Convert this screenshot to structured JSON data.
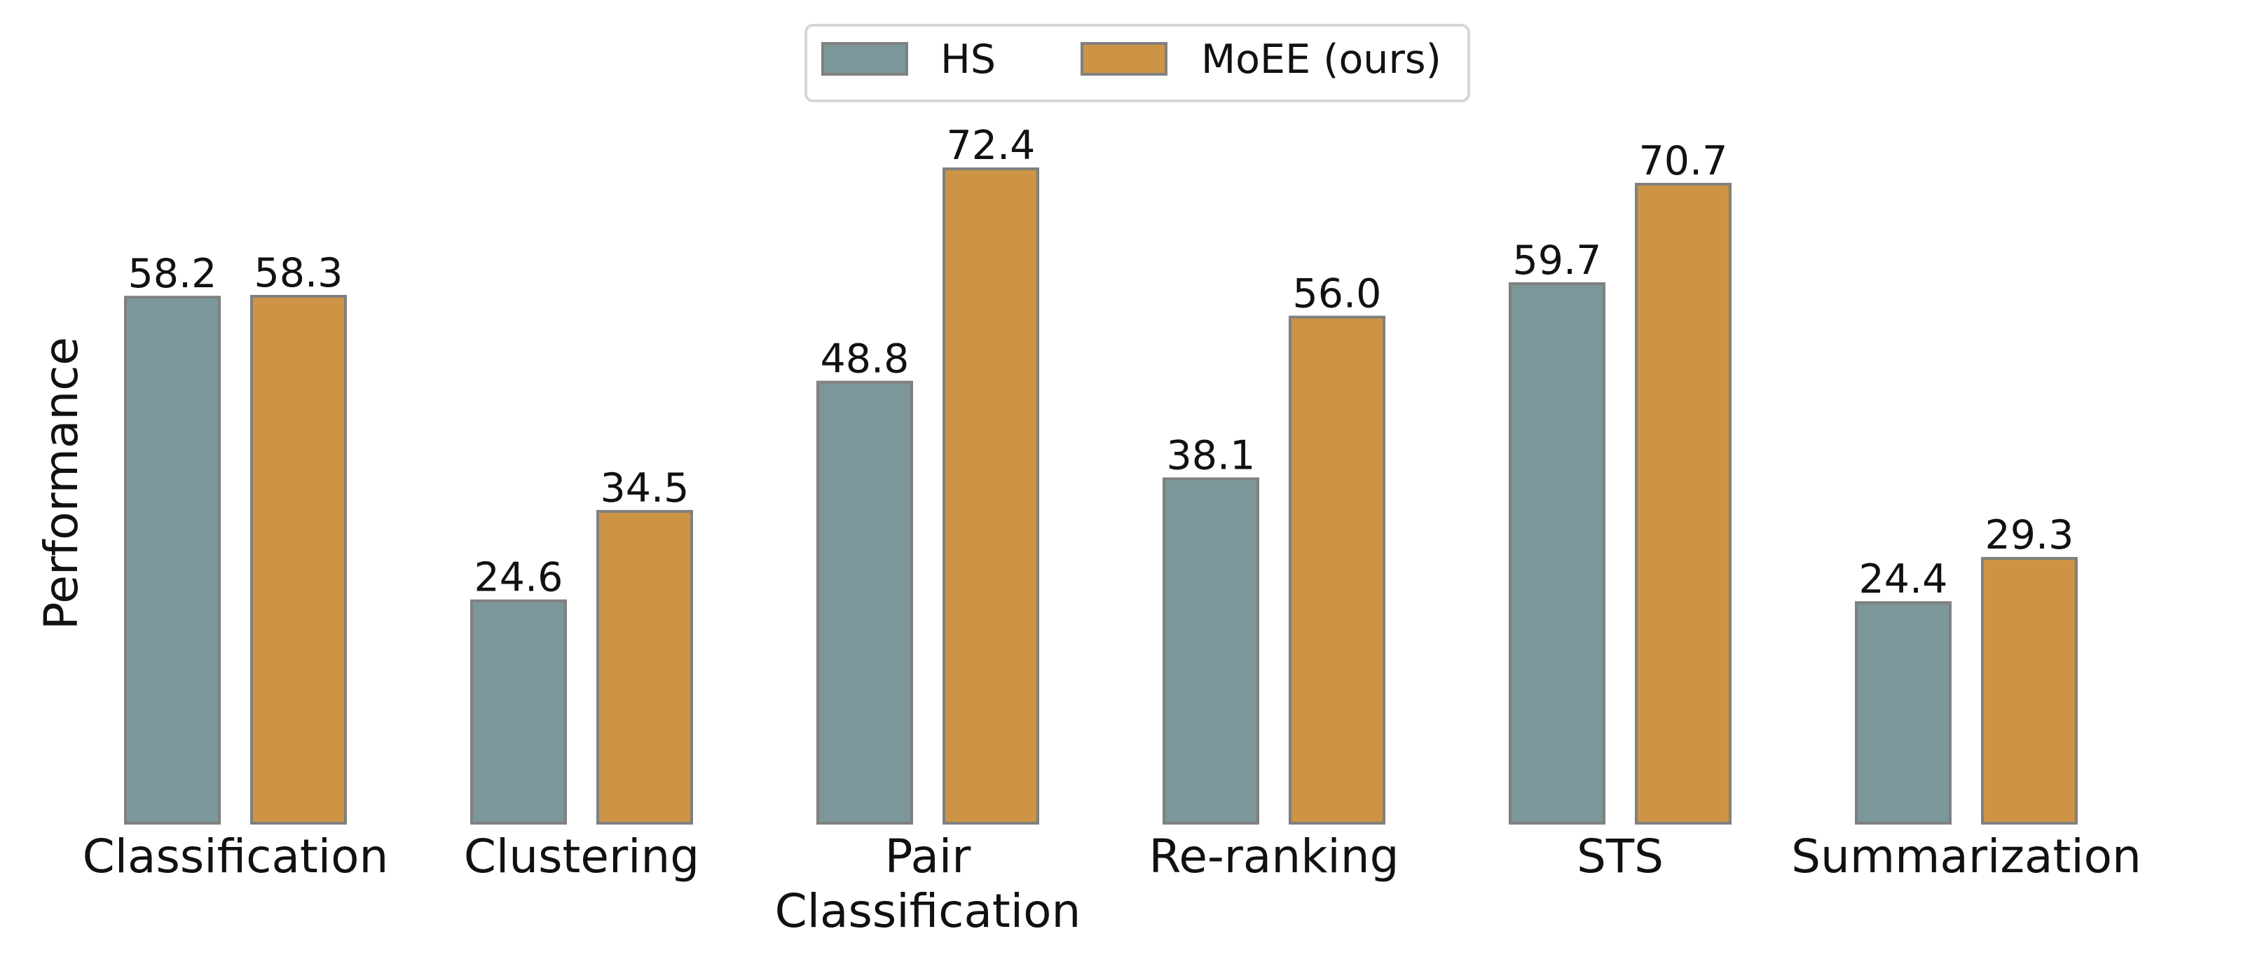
{
  "chart_data": {
    "type": "bar",
    "categories": [
      "Classification",
      "Clustering",
      "Pair\nClassification",
      "Re-ranking",
      "STS",
      "Summarization"
    ],
    "series": [
      {
        "name": "HS",
        "values": [
          58.2,
          24.6,
          48.8,
          38.1,
          59.7,
          24.4
        ],
        "color": "#7b9799"
      },
      {
        "name": "MoEE (ours)",
        "values": [
          58.3,
          34.5,
          72.4,
          56.0,
          70.7,
          29.3
        ],
        "color": "#cc9444"
      }
    ],
    "ylabel": "Performance",
    "xlabel": "",
    "title": "",
    "ylim": [
      0,
      75
    ],
    "grid": false,
    "legend": "top-center",
    "value_labels_decimals": 1,
    "edge_color": "#808080"
  }
}
